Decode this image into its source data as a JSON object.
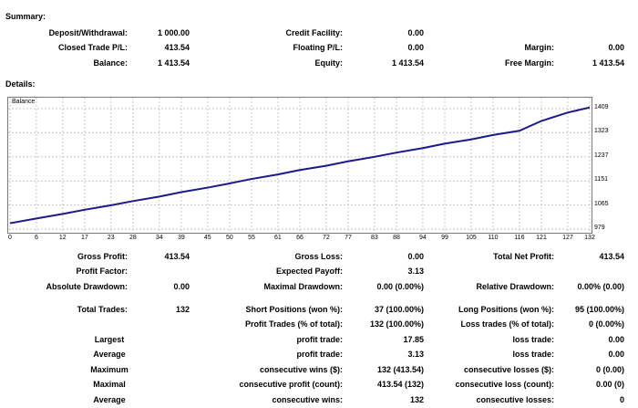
{
  "summary": {
    "title": "Summary:",
    "deposit_label": "Deposit/Withdrawal:",
    "deposit_value": "1 000.00",
    "closed_pl_label": "Closed Trade P/L:",
    "closed_pl_value": "413.54",
    "balance_label": "Balance:",
    "balance_value": "1 413.54",
    "credit_label": "Credit Facility:",
    "credit_value": "0.00",
    "floating_label": "Floating P/L:",
    "floating_value": "0.00",
    "equity_label": "Equity:",
    "equity_value": "1 413.54",
    "margin_label": "Margin:",
    "margin_value": "0.00",
    "free_margin_label": "Free Margin:",
    "free_margin_value": "1 413.54"
  },
  "details": {
    "title": "Details:"
  },
  "chart_data": {
    "type": "line",
    "legend_label": "Balance",
    "x_ticks": [
      "0",
      "6",
      "12",
      "17",
      "23",
      "28",
      "34",
      "39",
      "45",
      "50",
      "55",
      "61",
      "66",
      "72",
      "77",
      "83",
      "88",
      "94",
      "99",
      "105",
      "110",
      "116",
      "121",
      "127",
      "132"
    ],
    "y_ticks": [
      "1409",
      "1323",
      "1237",
      "1151",
      "1065",
      "979"
    ],
    "ylim": [
      979,
      1409
    ],
    "xlim": [
      0,
      132
    ],
    "series": [
      {
        "x": [
          0,
          6,
          12,
          17,
          23,
          28,
          34,
          39,
          45,
          50,
          55,
          61,
          66,
          72,
          77,
          83,
          88,
          94,
          99,
          105,
          110,
          116,
          121,
          127,
          132
        ],
        "y": [
          1000,
          1017,
          1033,
          1048,
          1064,
          1079,
          1095,
          1111,
          1127,
          1142,
          1158,
          1174,
          1190,
          1205,
          1221,
          1237,
          1252,
          1268,
          1284,
          1299,
          1315,
          1330,
          1365,
          1395,
          1413
        ]
      }
    ],
    "line_color": "#1a1a8c",
    "grid": true
  },
  "stats": {
    "gross_profit_label": "Gross Profit:",
    "gross_profit_value": "413.54",
    "gross_loss_label": "Gross Loss:",
    "gross_loss_value": "0.00",
    "net_profit_label": "Total Net Profit:",
    "net_profit_value": "413.54",
    "profit_factor_label": "Profit Factor:",
    "expected_payoff_label": "Expected Payoff:",
    "expected_payoff_value": "3.13",
    "abs_dd_label": "Absolute Drawdown:",
    "abs_dd_value": "0.00",
    "max_dd_label": "Maximal Drawdown:",
    "max_dd_value": "0.00 (0.00%)",
    "rel_dd_label": "Relative Drawdown:",
    "rel_dd_value": "0.00% (0.00)",
    "total_trades_label": "Total Trades:",
    "total_trades_value": "132",
    "short_label": "Short Positions (won %):",
    "short_value": "37 (100.00%)",
    "long_label": "Long Positions (won %):",
    "long_value": "95 (100.00%)",
    "profit_trades_label": "Profit Trades (% of total):",
    "profit_trades_value": "132 (100.00%)",
    "loss_trades_label": "Loss trades (% of total):",
    "loss_trades_value": "0 (0.00%)",
    "largest_label": "Largest",
    "largest_profit_label": "profit trade:",
    "largest_profit_value": "17.85",
    "largest_loss_label": "loss trade:",
    "largest_loss_value": "0.00",
    "average_label": "Average",
    "avg_profit_label": "profit trade:",
    "avg_profit_value": "3.13",
    "avg_loss_label": "loss trade:",
    "avg_loss_value": "0.00",
    "maximum_label": "Maximum",
    "max_cons_wins_label": "consecutive wins ($):",
    "max_cons_wins_value": "132 (413.54)",
    "max_cons_losses_label": "consecutive losses ($):",
    "max_cons_losses_value": "0 (0.00)",
    "maximal_label": "Maximal",
    "maximal_profit_label": "consecutive profit (count):",
    "maximal_profit_value": "413.54 (132)",
    "maximal_loss_label": "consecutive loss (count):",
    "maximal_loss_value": "0.00 (0)",
    "average2_label": "Average",
    "avg_cons_wins_label": "consecutive wins:",
    "avg_cons_wins_value": "132",
    "avg_cons_losses_label": "consecutive losses:",
    "avg_cons_losses_value": "0"
  }
}
